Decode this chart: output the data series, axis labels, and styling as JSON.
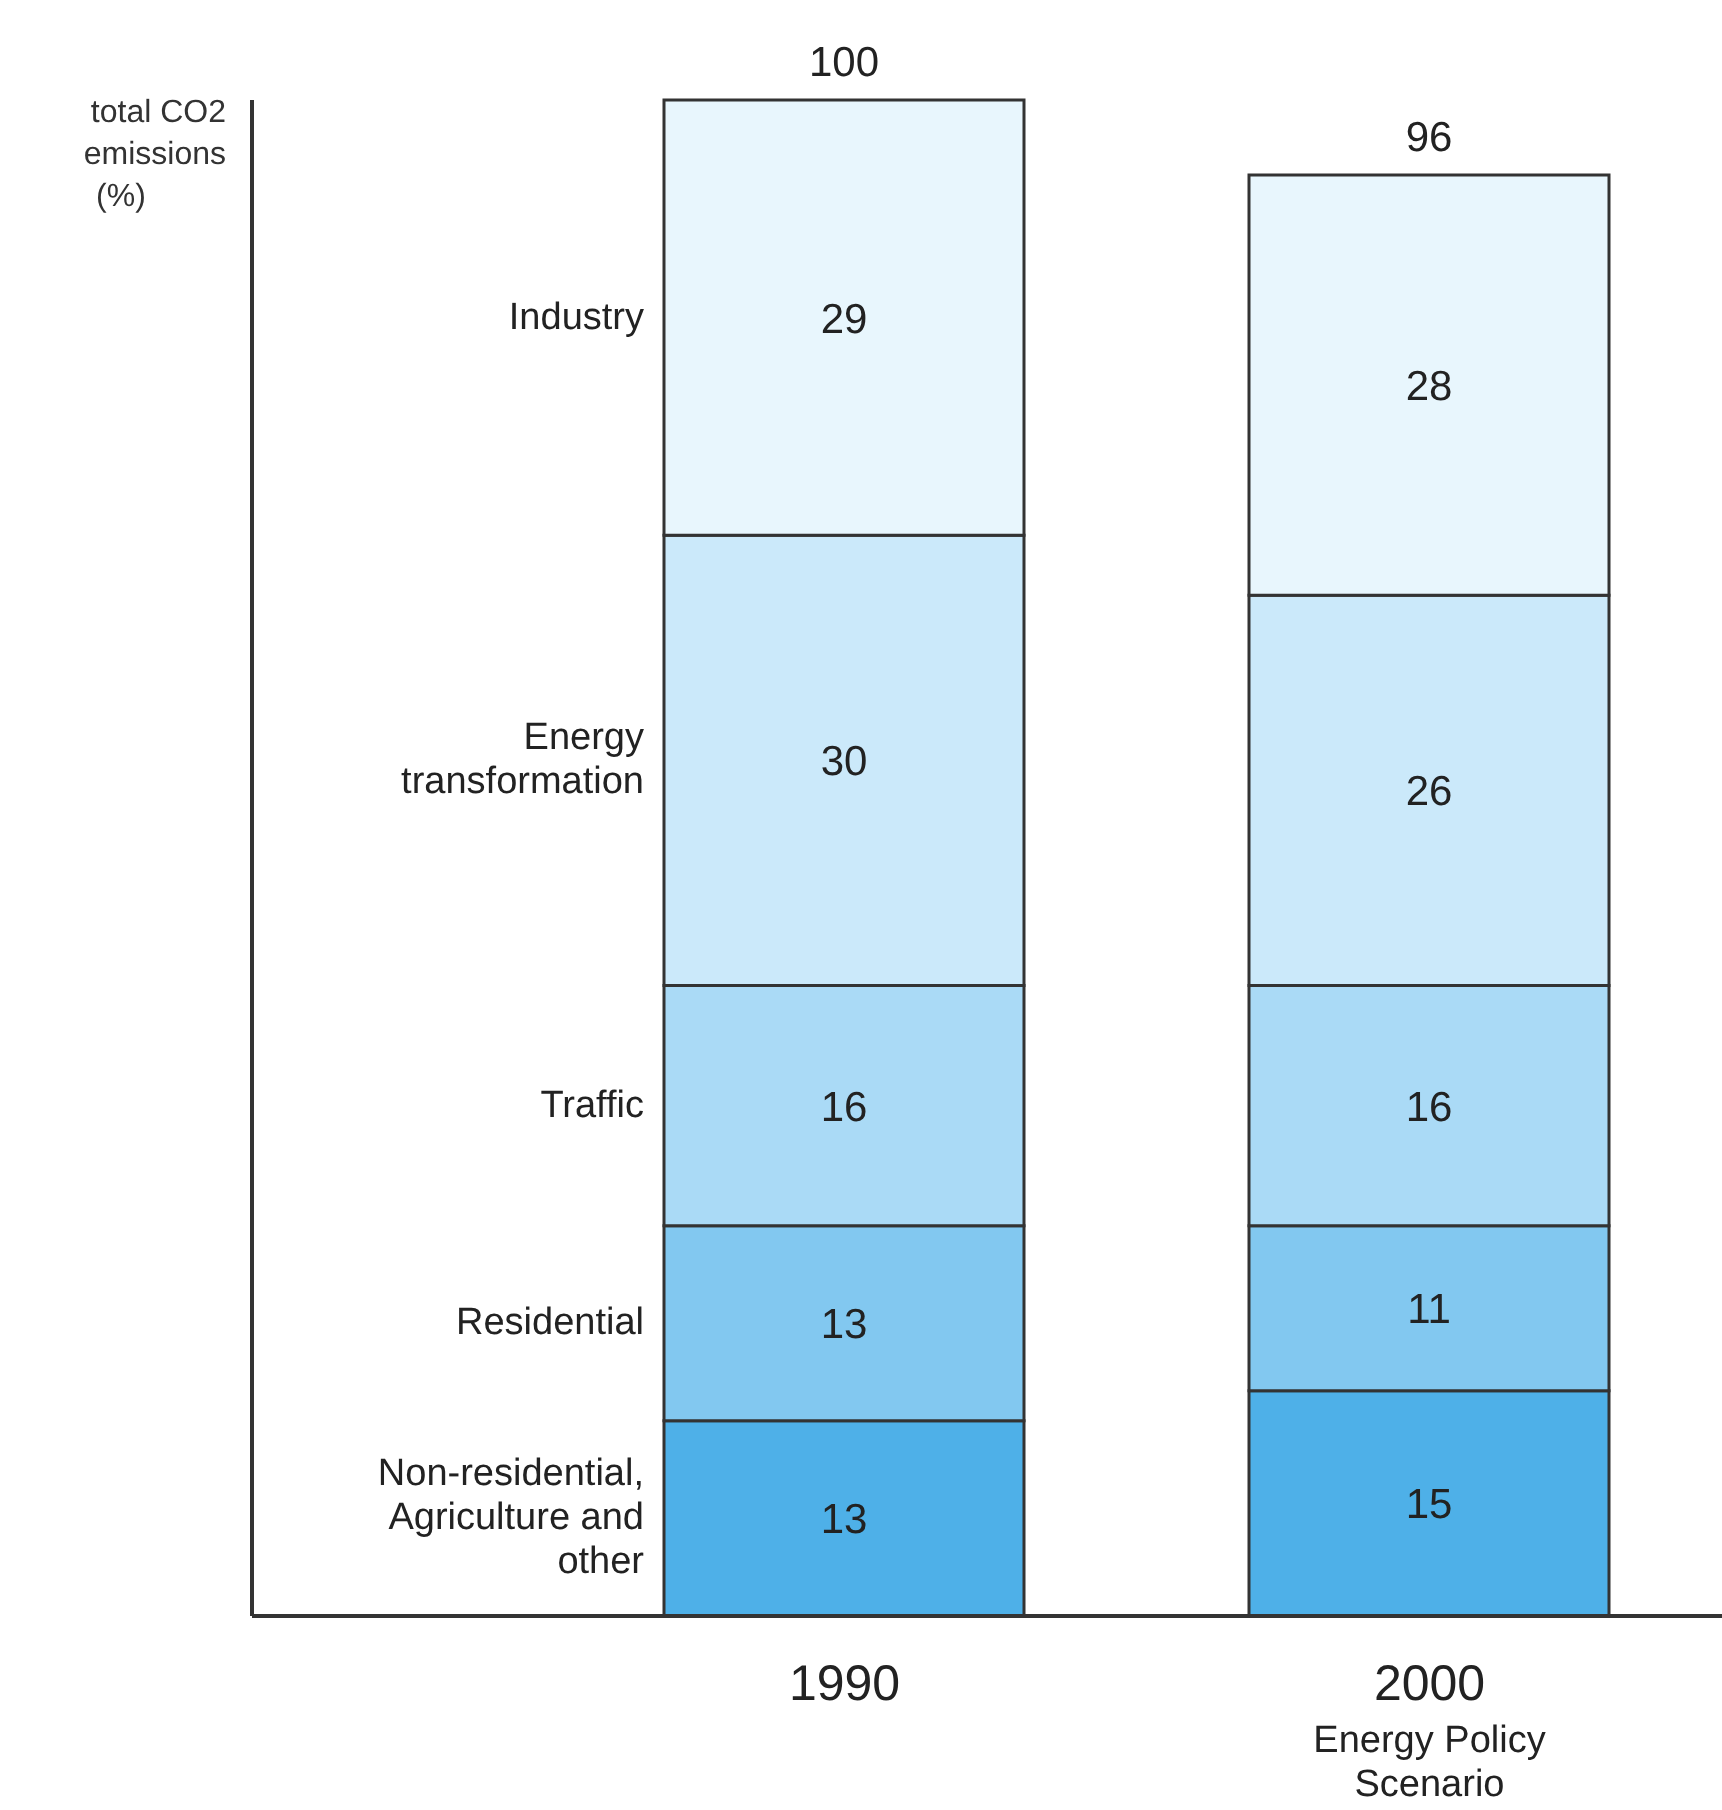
{
  "chart_data": {
    "type": "bar",
    "stacked": true,
    "ylabel": "total CO2 emissions (%)",
    "categories": [
      "1990",
      "2000 Energy Policy Scenario"
    ],
    "series": [
      {
        "name": "Non-residential, Agriculture and other",
        "color": "#4eb0e8",
        "values": [
          13,
          15
        ]
      },
      {
        "name": "Residential",
        "color": "#82c8f0",
        "values": [
          13,
          11
        ]
      },
      {
        "name": "Traffic",
        "color": "#aadaf6",
        "values": [
          16,
          16
        ]
      },
      {
        "name": "Energy transformation",
        "color": "#cbe9fa",
        "values": [
          30,
          26
        ]
      },
      {
        "name": "Industry",
        "color": "#e8f6fd",
        "values": [
          29,
          28
        ]
      }
    ],
    "totals": [
      "100",
      "96"
    ],
    "data_labels": true,
    "grid": false,
    "legend": false
  }
}
